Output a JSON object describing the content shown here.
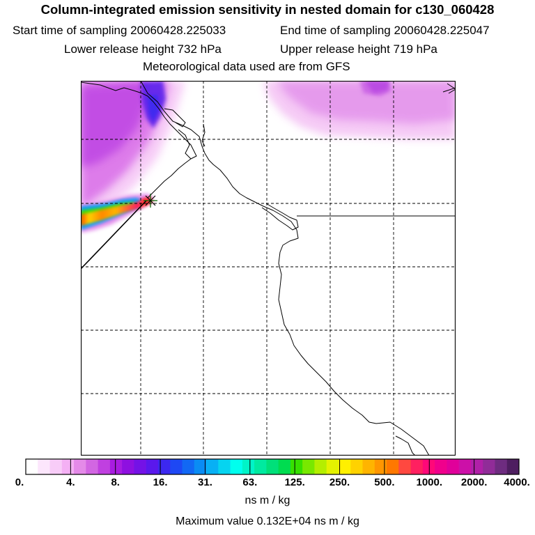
{
  "title": "Column-integrated emission sensitivity in nested domain for c130_060428",
  "sampling": {
    "start": "Start time of sampling 20060428.225033",
    "end": "End time of sampling 20060428.225047"
  },
  "release": {
    "lower": "Lower release height  732 hPa",
    "upper": "Upper release height  719 hPa"
  },
  "met": "Meteorological data used are from GFS",
  "colorbar": {
    "tick_labels": [
      "0.",
      "4.",
      "8.",
      "16.",
      "31.",
      "63.",
      "125.",
      "250.",
      "500.",
      "1000.",
      "2000.",
      "4000."
    ],
    "colors": [
      "#ffffff",
      "#fce6fc",
      "#f8ccf8",
      "#f4b0f4",
      "#e48ae8",
      "#d266e2",
      "#c040e0",
      "#a81ce0",
      "#8e10e0",
      "#7412e6",
      "#5a18ec",
      "#3c28f0",
      "#1e48f4",
      "#1268f4",
      "#0a8cf4",
      "#08b0f4",
      "#06d4f0",
      "#00ffee",
      "#00f4c8",
      "#00eaa0",
      "#00e07a",
      "#00dc50",
      "#36e000",
      "#78e800",
      "#b4ee00",
      "#e4f200",
      "#fff000",
      "#ffd200",
      "#ffb400",
      "#ff9600",
      "#ff7800",
      "#ff4840",
      "#ff2060",
      "#ff0878",
      "#f0008c",
      "#e0009a",
      "#cc10a8",
      "#b020a8",
      "#902c98",
      "#6e2c80",
      "#4e1e60"
    ],
    "units": "ns m / kg"
  },
  "max_value": "Maximum value  0.132E+04 ns m / kg",
  "map": {
    "receptor_marker": "star",
    "colors": {
      "coast": "#000000",
      "grid": "#000000",
      "frame": "#000000"
    }
  }
}
